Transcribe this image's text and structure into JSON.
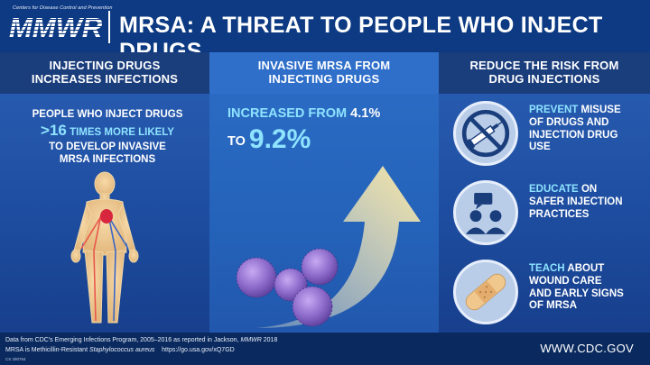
{
  "header": {
    "agency": "Centers for Disease Control and Prevention",
    "logo": "MMWR",
    "title": "MRSA: A THREAT TO PEOPLE WHO INJECT DRUGS"
  },
  "left_panel": {
    "heading_line1": "INJECTING DRUGS",
    "heading_line2": "INCREASES INFECTIONS",
    "stat_prefix": "PEOPLE WHO INJECT DRUGS",
    "stat_value": ">16",
    "stat_mid": "TIMES MORE LIKELY",
    "stat_line3": "TO DEVELOP INVASIVE",
    "stat_line4": "MRSA INFECTIONS",
    "figure_icon": "human-body-circulatory-icon"
  },
  "middle_panel": {
    "heading_line1": "INVASIVE MRSA FROM",
    "heading_line2": "INJECTING DRUGS",
    "increase_label": "INCREASED FROM",
    "from_value": "4.1%",
    "to_label": "TO",
    "to_value": "9.2%",
    "art_icon": "rising-arrow-with-bacteria-icon"
  },
  "right_panel": {
    "heading_line1": "REDUCE THE RISK FROM",
    "heading_line2": "DRUG INJECTIONS",
    "tips": [
      {
        "keyword": "PREVENT",
        "text_a": "MISUSE",
        "text_b": "OF DRUGS AND",
        "text_c": "INJECTION DRUG",
        "text_d": "USE",
        "icon": "no-syringe-icon"
      },
      {
        "keyword": "EDUCATE",
        "text_a": "ON",
        "text_b": "SAFER INJECTION",
        "text_c": "PRACTICES",
        "text_d": "",
        "icon": "people-speech-icon"
      },
      {
        "keyword": "TEACH",
        "text_a": "ABOUT",
        "text_b": "WOUND CARE",
        "text_c": "AND EARLY SIGNS",
        "text_d": "OF MRSA",
        "icon": "bandage-icon"
      }
    ]
  },
  "footer": {
    "note1_a": "Data from CDC's Emerging Infections Program, 2005–2016 as reported in Jackson,",
    "note1_b": "MMWR",
    "note1_c": "2018",
    "note2_a": "MRSA is Methicillin-Resistant",
    "note2_b": "Staphylococcus aureus",
    "note2_c": "https://go.usa.gov/xQ7GD",
    "id": "CS 290764",
    "url": "WWW.CDC.GOV"
  },
  "colors": {
    "header_bg": "#0d3a82",
    "accent_cyan": "#8ee3ff",
    "panel_head": "#1a3d7c",
    "footer_bg": "#0a2a5f",
    "arrow": "#f6e3a1",
    "bacteria": "#8a68c9"
  }
}
